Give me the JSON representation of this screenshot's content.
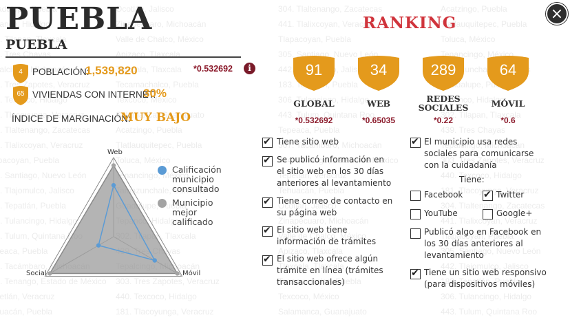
{
  "background_list": [
    {
      "text": "Guadalupe, Puebla"
    },
    {
      "text": "Tepanco, Hidalgo"
    },
    {
      "text": "302. Tilapan, Tlaxcala"
    },
    {
      "text": "439. Tres Chayas"
    },
    {
      "text": "Tepalcingo, Michoacán"
    },
    {
      "text": "303. Tres Zapotes, Veracruz"
    },
    {
      "text": "440. Texcoco, Hidalgo"
    },
    {
      "text": "181. Tlacoyunga, Veracruz"
    },
    {
      "text": "304. Tlaltenango, Zacatecas"
    },
    {
      "text": "441. Tlalixcoyan, Veracruz"
    },
    {
      "text": "Tlapacoyan, Puebla"
    },
    {
      "text": "305. Santiago, Nuevo León"
    },
    {
      "text": "442. Tlajomulco, Jalisco"
    },
    {
      "text": "183. Tepatlán, Puebla"
    },
    {
      "text": "306. Tulancingo, Hidalgo"
    },
    {
      "text": "443. Tulum, Quintana Roo"
    },
    {
      "text": "Tepeaca, Puebla"
    },
    {
      "text": "307. Tacámbaro, Michoacán"
    },
    {
      "text": "444. Tenango, Estado de México"
    },
    {
      "text": "Tepetlán, Veracruz"
    },
    {
      "text": "Tehuacán, Puebla"
    },
    {
      "text": "Ocotlán, Jalisco"
    },
    {
      "text": "Zinapécuaro, Michoacán"
    },
    {
      "text": "Valle de Chalco, México"
    },
    {
      "text": "Apizaco, Tlaxcala"
    },
    {
      "text": "Tlaxcala, Tlaxcala"
    },
    {
      "text": "Tecamachalco, Puebla"
    },
    {
      "text": "Texcoco, México"
    },
    {
      "text": "Salamanca, Guanajuato"
    },
    {
      "text": "Acatzingo, Puebla"
    },
    {
      "text": "Tlatlauquitepec, Puebla"
    },
    {
      "text": "Toluca, México"
    },
    {
      "text": "Tenancingo, México"
    },
    {
      "text": "Tamazunchale, San Luis"
    }
  ],
  "header": {
    "city": "PUEBLA",
    "state": "PUEBLA"
  },
  "stats": {
    "poblacion": {
      "rank": "4",
      "label": "POBLACIÓN:",
      "value": "1,539,820"
    },
    "viviendas": {
      "rank": "65",
      "label": "VIVIENDAS CON INTERNET:",
      "value": "30%"
    },
    "marginacion": {
      "label": "ÍNDICE DE MARGINACIÓN:",
      "value": "MUY BAJO"
    },
    "overall_score": "*0.532692",
    "info_icon": "i"
  },
  "ranking": {
    "title": "RANKING",
    "columns": [
      {
        "rank": "91",
        "label": "GLOBAL",
        "score": "*0.532692"
      },
      {
        "rank": "34",
        "label": "WEB",
        "score": "*0.65035"
      },
      {
        "rank": "289",
        "label": "REDES SOCIALES",
        "score": "*0.22"
      },
      {
        "rank": "64",
        "label": "MÓVIL",
        "score": "*0.6"
      }
    ]
  },
  "web_checks": [
    {
      "text": "Tiene sitio web",
      "checked": true
    },
    {
      "text": "Se publicó información en el sitio web en los 30 días anteriores al levantamiento",
      "checked": true
    },
    {
      "text": "Tiene correo de contacto en su página web",
      "checked": true
    },
    {
      "text": "El sitio web tiene información de trámites",
      "checked": true
    },
    {
      "text": "El sitio web ofrece algún trámite en línea (trámites transaccionales)",
      "checked": true
    }
  ],
  "social_checks": {
    "main": {
      "text": "El municipio usa redes sociales para comunicarse con la cuidadanía",
      "checked": true
    },
    "tiene_label": "Tiene:",
    "networks": [
      {
        "text": "Facebook",
        "checked": false
      },
      {
        "text": "Twitter",
        "checked": true
      },
      {
        "text": "YouTube",
        "checked": false
      },
      {
        "text": "Google+",
        "checked": false
      }
    ],
    "facebook_post": {
      "text": "Publicó algo en Facebook en los 30 días anteriores al levantamiento",
      "checked": false
    },
    "mobile": {
      "text": "Tiene un sitio web responsivo (para dispositivos móviles)",
      "checked": true
    }
  },
  "close_icon": "×",
  "colors": {
    "accent": "#e49a1c",
    "ranking_title": "#d0343c",
    "score": "#8b1a2b",
    "consulted": "#5b9bd5",
    "best": "#a3a3a3"
  },
  "chart_data": {
    "type": "radar",
    "axes": [
      "Web",
      "Móvil",
      "Social"
    ],
    "range": [
      0,
      1
    ],
    "series": [
      {
        "name": "Calificación municipio consultado",
        "values": [
          0.65,
          0.6,
          0.22
        ]
      },
      {
        "name": "Municipio mejor calificado",
        "values": [
          0.9,
          0.93,
          0.93
        ]
      }
    ]
  }
}
